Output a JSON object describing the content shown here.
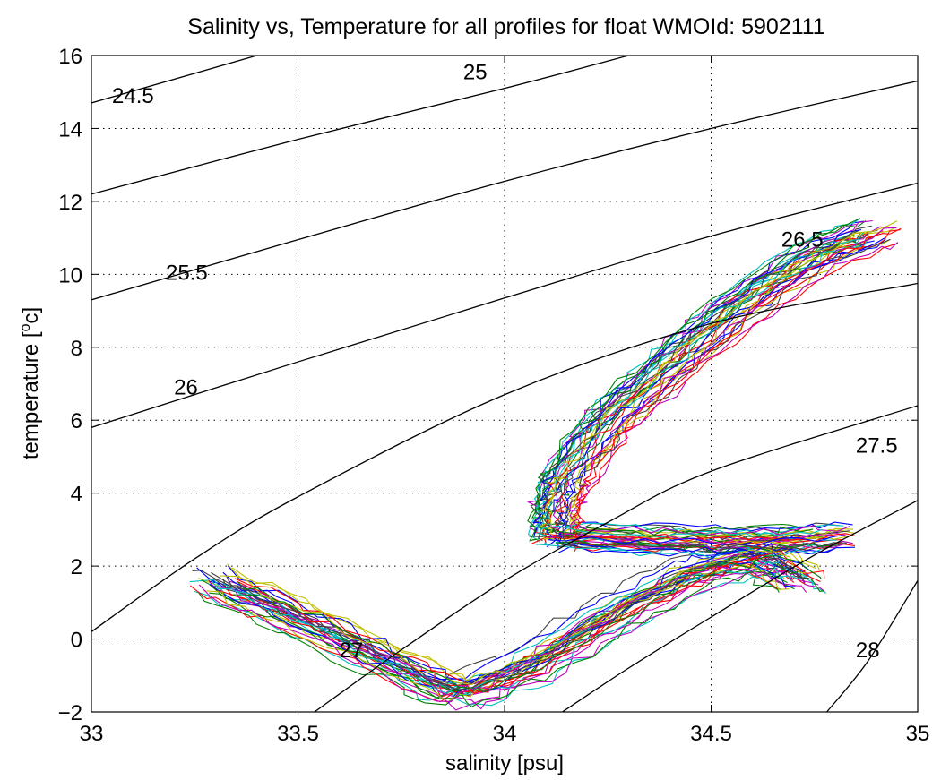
{
  "chart_data": {
    "type": "line",
    "title": "Salinity vs, Temperature for all profiles for float WMOId: 5902111",
    "xlabel": "salinity [psu]",
    "ylabel_main": "temperature [",
    "ylabel_sup": "o",
    "ylabel_end": "c]",
    "xlim": [
      33,
      35
    ],
    "ylim": [
      -2,
      16
    ],
    "xticks": [
      "33",
      "33.5",
      "34",
      "34.5",
      "35"
    ],
    "yticks": [
      "−2",
      "0",
      "2",
      "4",
      "6",
      "8",
      "10",
      "12",
      "14",
      "16"
    ],
    "grid": true,
    "grid_style": "dotted",
    "density_contours": [
      {
        "label": "24.5",
        "label_x": 33.05,
        "label_y": 14.9,
        "points": [
          [
            33.0,
            14.7
          ],
          [
            33.4,
            16.0
          ]
        ]
      },
      {
        "label": "25",
        "label_x": 33.9,
        "label_y": 15.55,
        "points": [
          [
            33.0,
            12.2
          ],
          [
            33.5,
            13.7
          ],
          [
            34.0,
            15.1
          ],
          [
            34.3,
            16.0
          ]
        ]
      },
      {
        "label": "25.5",
        "label_x": 33.18,
        "label_y": 10.05,
        "points": [
          [
            33.0,
            9.3
          ],
          [
            33.5,
            10.95
          ],
          [
            34.0,
            12.55
          ],
          [
            34.5,
            14.0
          ],
          [
            35.0,
            15.3
          ]
        ]
      },
      {
        "label": "26",
        "label_x": 33.2,
        "label_y": 6.9,
        "points": [
          [
            33.0,
            5.8
          ],
          [
            33.5,
            7.6
          ],
          [
            34.0,
            9.35
          ],
          [
            34.5,
            11.05
          ],
          [
            35.0,
            12.5
          ]
        ]
      },
      {
        "label": "26.5",
        "label_x": 34.67,
        "label_y": 10.95,
        "points": [
          [
            33.0,
            0.2
          ],
          [
            33.25,
            2.2
          ],
          [
            33.5,
            3.9
          ],
          [
            34.0,
            6.7
          ],
          [
            34.5,
            8.65
          ],
          [
            35.0,
            9.75
          ]
        ]
      },
      {
        "label": "27",
        "label_x": 33.6,
        "label_y": -0.3,
        "points": [
          [
            33.54,
            -2.0
          ],
          [
            33.75,
            -0.3
          ],
          [
            34.0,
            1.6
          ],
          [
            34.25,
            3.2
          ],
          [
            34.5,
            4.6
          ],
          [
            35.0,
            6.4
          ]
        ]
      },
      {
        "label": "27.5",
        "label_x": 34.85,
        "label_y": 5.3,
        "points": [
          [
            34.14,
            -2.0
          ],
          [
            34.3,
            -0.8
          ],
          [
            34.5,
            0.6
          ],
          [
            34.75,
            2.3
          ],
          [
            35.0,
            3.8
          ]
        ]
      },
      {
        "label": "28",
        "label_x": 34.85,
        "label_y": -0.3,
        "points": [
          [
            34.78,
            -2.0
          ],
          [
            34.88,
            -0.6
          ],
          [
            35.0,
            1.6
          ]
        ]
      }
    ],
    "profile_colors": [
      "#0000ff",
      "#008000",
      "#ff0000",
      "#00bfbf",
      "#bf00bf",
      "#bfbf00",
      "#404040"
    ],
    "profile_template": [
      [
        33.3,
        1.6
      ],
      [
        33.5,
        0.6
      ],
      [
        33.72,
        -0.6
      ],
      [
        33.88,
        -1.5
      ],
      [
        34.05,
        -0.8
      ],
      [
        34.25,
        0.6
      ],
      [
        34.45,
        1.8
      ],
      [
        34.62,
        2.25
      ],
      [
        34.72,
        1.6
      ]
    ],
    "profile_upper_template": [
      [
        34.12,
        2.8
      ],
      [
        34.12,
        3.6
      ],
      [
        34.15,
        4.5
      ],
      [
        34.25,
        6.0
      ],
      [
        34.4,
        7.5
      ],
      [
        34.55,
        9.0
      ],
      [
        34.75,
        10.5
      ],
      [
        34.9,
        11.2
      ]
    ],
    "profile_branch_template": [
      [
        34.12,
        2.8
      ],
      [
        34.4,
        2.7
      ],
      [
        34.6,
        2.65
      ],
      [
        34.8,
        2.8
      ]
    ]
  }
}
